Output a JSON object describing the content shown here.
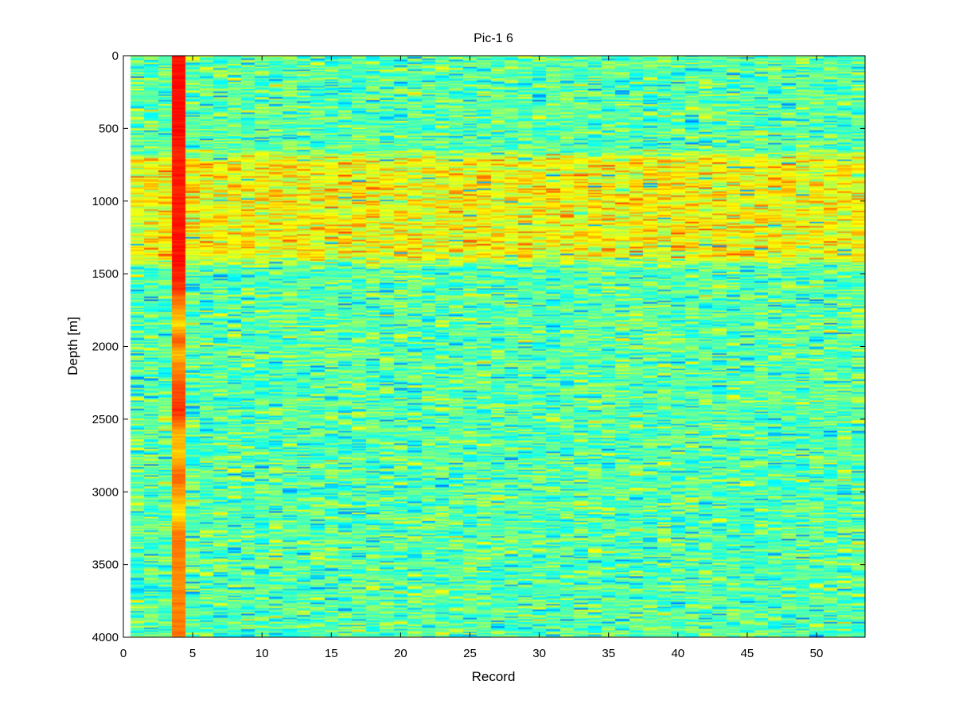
{
  "chart_data": {
    "type": "heatmap",
    "title": "Pic-1 6",
    "xlabel": "Record",
    "ylabel": "Depth [m]",
    "xlim": [
      0,
      53.5
    ],
    "ylim": [
      0,
      4000
    ],
    "y_axis_reversed": true,
    "x_ticks": [
      0,
      5,
      10,
      15,
      20,
      25,
      30,
      35,
      40,
      45,
      50
    ],
    "y_ticks": [
      0,
      500,
      1000,
      1500,
      2000,
      2500,
      3000,
      3500,
      4000
    ],
    "grid": false,
    "colormap": "jet",
    "records": [
      1,
      53
    ],
    "depth_range": [
      0,
      4000
    ],
    "background_level": 0.46,
    "bright_band": {
      "depth_from": 680,
      "depth_to": 1420,
      "level": 0.62
    },
    "hot_column": {
      "record": 4,
      "profile": [
        {
          "depth": 0,
          "level": 0.86
        },
        {
          "depth": 500,
          "level": 0.86
        },
        {
          "depth": 700,
          "level": 0.84
        },
        {
          "depth": 900,
          "level": 0.85
        },
        {
          "depth": 1400,
          "level": 0.86
        },
        {
          "depth": 1600,
          "level": 0.82
        },
        {
          "depth": 1750,
          "level": 0.72
        },
        {
          "depth": 1850,
          "level": 0.66
        },
        {
          "depth": 1950,
          "level": 0.78
        },
        {
          "depth": 2050,
          "level": 0.7
        },
        {
          "depth": 2300,
          "level": 0.8
        },
        {
          "depth": 2450,
          "level": 0.83
        },
        {
          "depth": 2600,
          "level": 0.7
        },
        {
          "depth": 2750,
          "level": 0.68
        },
        {
          "depth": 2900,
          "level": 0.78
        },
        {
          "depth": 3050,
          "level": 0.7
        },
        {
          "depth": 3150,
          "level": 0.64
        },
        {
          "depth": 3300,
          "level": 0.76
        },
        {
          "depth": 3600,
          "level": 0.74
        },
        {
          "depth": 4000,
          "level": 0.76
        }
      ]
    }
  }
}
